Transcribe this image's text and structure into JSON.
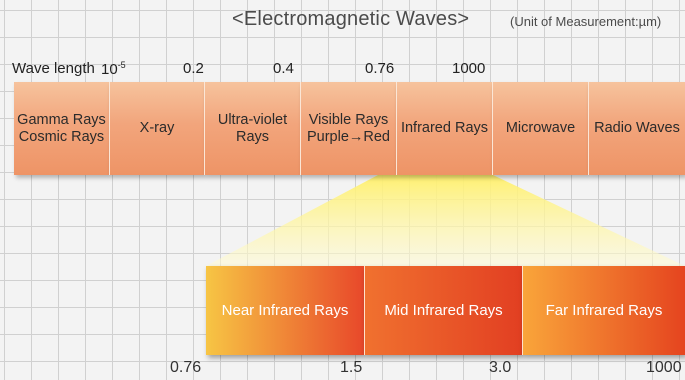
{
  "title": {
    "main": "<Electromagnetic Waves>",
    "unit": "(Unit of Measurement:µm)"
  },
  "wavelength_label": "Wave length",
  "top_ticks": {
    "t0_base": "10",
    "t0_exp": "-5",
    "t1": "0.2",
    "t2": "0.4",
    "t3": "0.76",
    "t4": "1000"
  },
  "bands": [
    {
      "label": "Gamma Rays\nCosmic Rays"
    },
    {
      "label": "X-ray"
    },
    {
      "label": "Ultra-violet\nRays"
    },
    {
      "label": "Visible Rays\nPurple→Red"
    },
    {
      "label": "Infrared Rays"
    },
    {
      "label": "Microwave"
    },
    {
      "label": "Radio Waves"
    }
  ],
  "infrared_bands": [
    {
      "label": "Near Infrared Rays",
      "color_left": "#f7c544",
      "color_right": "#e8482a"
    },
    {
      "label": "Mid Infrared Rays",
      "color_left": "#f0712f",
      "color_right": "#e23f22"
    },
    {
      "label": "Far Infrared Rays",
      "color_left": "#f9a53a",
      "color_right": "#e5441f"
    }
  ],
  "bottom_ticks": {
    "b0": "0.76",
    "b1": "1.5",
    "b2": "3.0",
    "b3": "1000"
  },
  "colors": {
    "band_fill": "#f2a57c",
    "highlight_yellow": "#fff06a",
    "text_dark": "#2b2b2b"
  }
}
